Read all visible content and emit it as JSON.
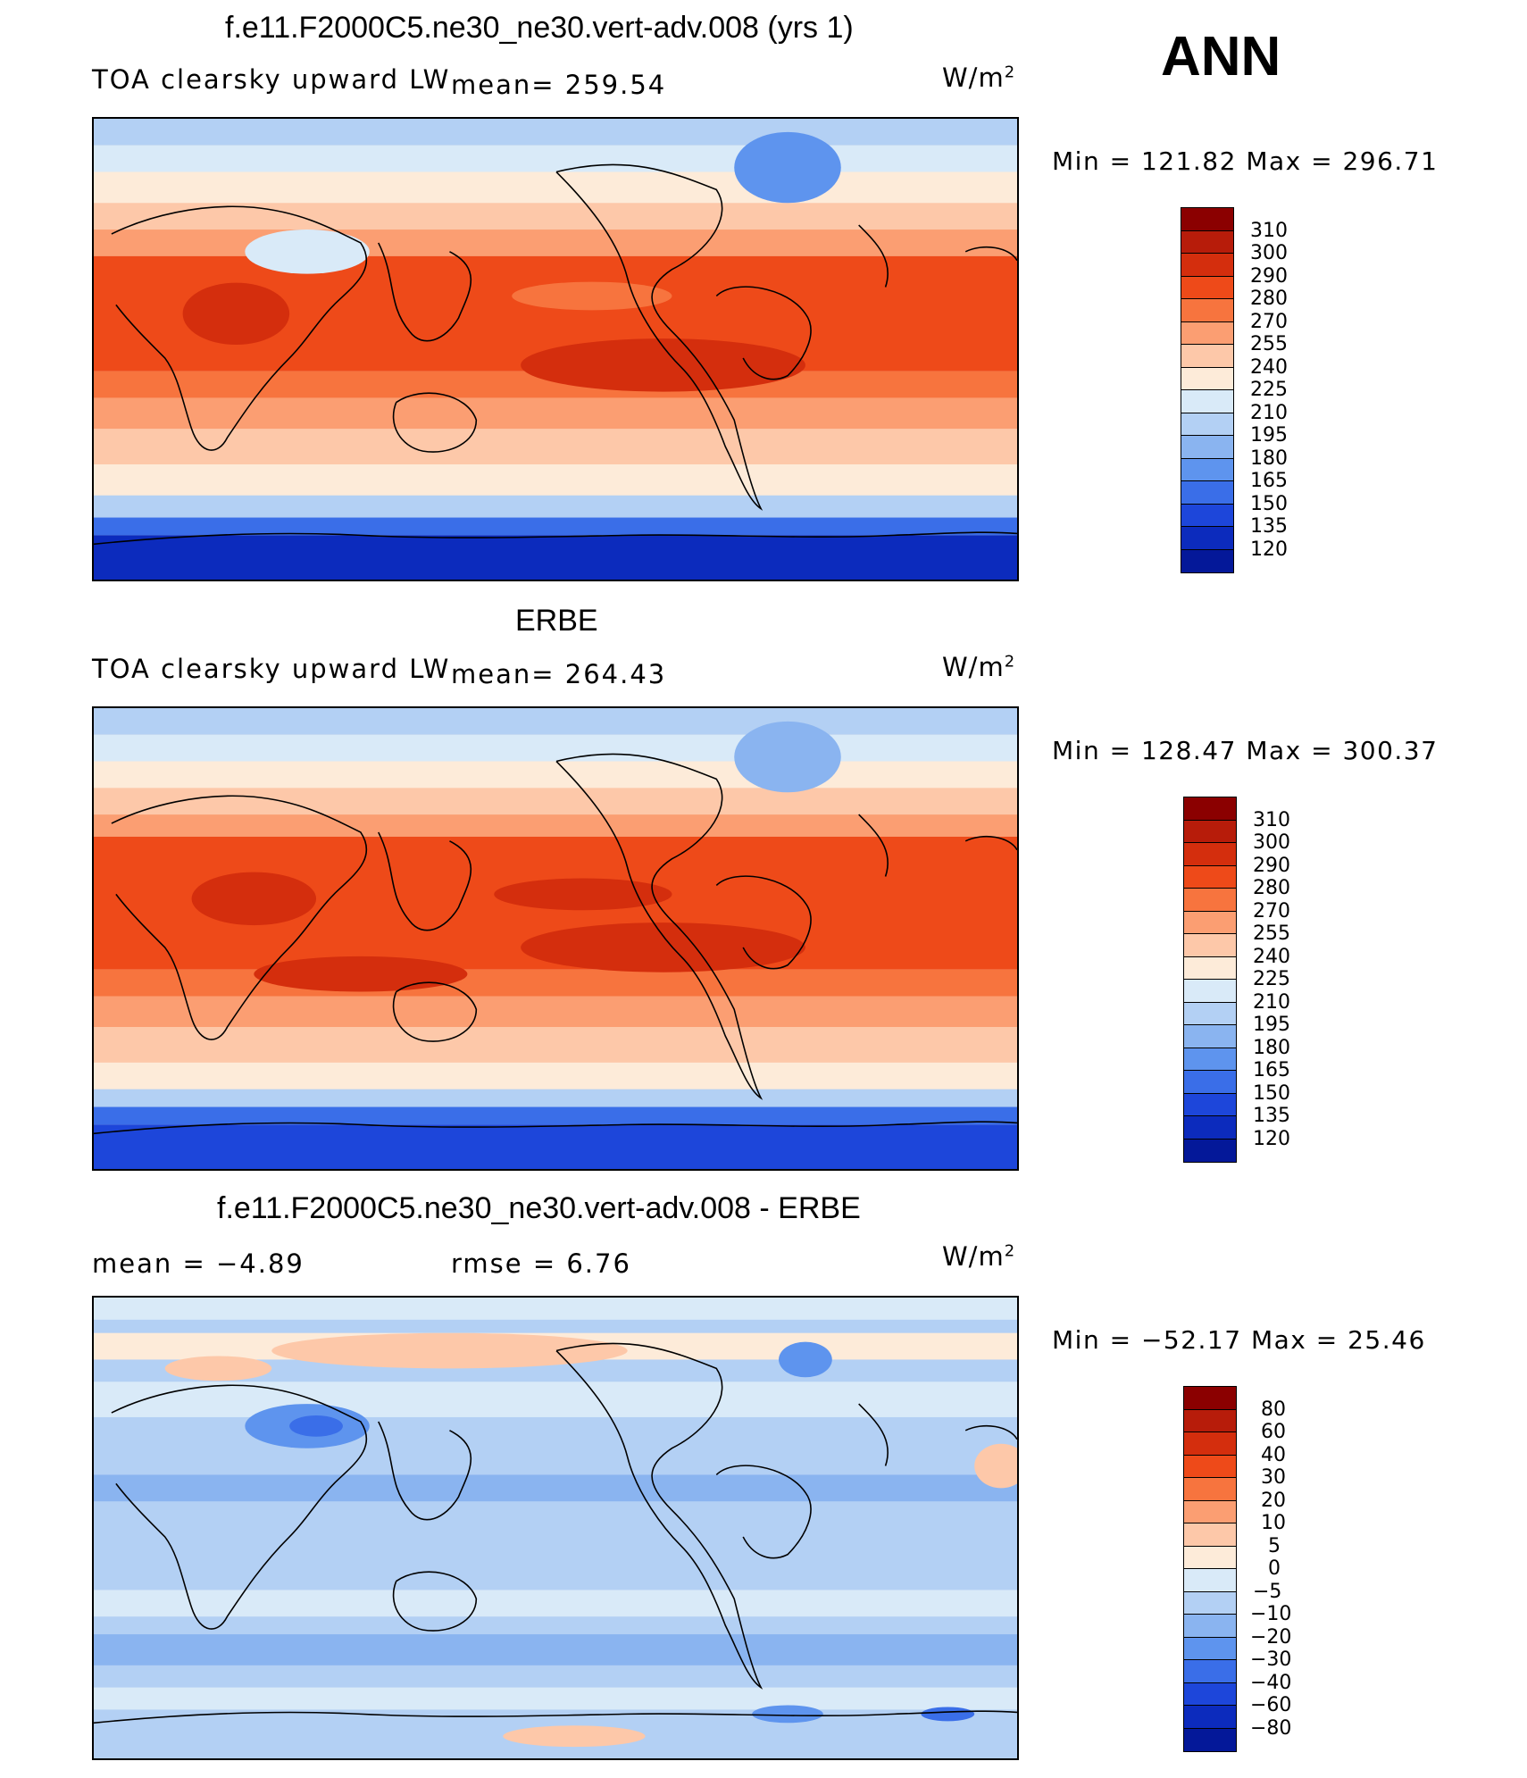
{
  "season": "ANN",
  "panels": [
    {
      "title": "f.e11.F2000C5.ne30_ne30.vert-adv.008 (yrs 1)",
      "left_label": "TOA clearsky upward LW",
      "center_label": "mean= 259.54",
      "units_base": "W/m",
      "units_exp": "2",
      "minmax": "Min  =  121.82  Max  =  296.71",
      "colorbar": {
        "labels": [
          "310",
          "300",
          "290",
          "280",
          "270",
          "255",
          "240",
          "225",
          "210",
          "195",
          "180",
          "165",
          "150",
          "135",
          "120"
        ],
        "colors": [
          "#8b0000",
          "#b71c0a",
          "#d42e0d",
          "#ee4a19",
          "#f7743e",
          "#fb9e72",
          "#fdc8a9",
          "#fdebd9",
          "#d9eaf8",
          "#b3d0f4",
          "#8ab4f0",
          "#5e94ee",
          "#3a6ee8",
          "#1d46da",
          "#0c2bbd",
          "#041899"
        ]
      }
    },
    {
      "title": "ERBE",
      "left_label": "TOA clearsky upward LW",
      "center_label": "mean= 264.43",
      "units_base": "W/m",
      "units_exp": "2",
      "minmax": "Min  =  128.47  Max  =  300.37",
      "colorbar": {
        "labels": [
          "310",
          "300",
          "290",
          "280",
          "270",
          "255",
          "240",
          "225",
          "210",
          "195",
          "180",
          "165",
          "150",
          "135",
          "120"
        ],
        "colors": [
          "#8b0000",
          "#b71c0a",
          "#d42e0d",
          "#ee4a19",
          "#f7743e",
          "#fb9e72",
          "#fdc8a9",
          "#fdebd9",
          "#d9eaf8",
          "#b3d0f4",
          "#8ab4f0",
          "#5e94ee",
          "#3a6ee8",
          "#1d46da",
          "#0c2bbd",
          "#041899"
        ]
      }
    },
    {
      "title": "f.e11.F2000C5.ne30_ne30.vert-adv.008 - ERBE",
      "left_label": "mean =    −4.89",
      "center_label": "rmse =     6.76",
      "units_base": "W/m",
      "units_exp": "2",
      "minmax": "Min  =  −52.17  Max  =    25.46",
      "colorbar": {
        "labels": [
          "80",
          "60",
          "40",
          "30",
          "20",
          "10",
          "5",
          "0",
          "−5",
          "−10",
          "−20",
          "−30",
          "−40",
          "−60",
          "−80"
        ],
        "colors": [
          "#8b0000",
          "#b71c0a",
          "#d42e0d",
          "#ee4a19",
          "#f7743e",
          "#fb9e72",
          "#fdc8a9",
          "#fdebd9",
          "#d9eaf8",
          "#b3d0f4",
          "#8ab4f0",
          "#5e94ee",
          "#3a6ee8",
          "#1d46da",
          "#0c2bbd",
          "#041899"
        ]
      }
    }
  ]
}
